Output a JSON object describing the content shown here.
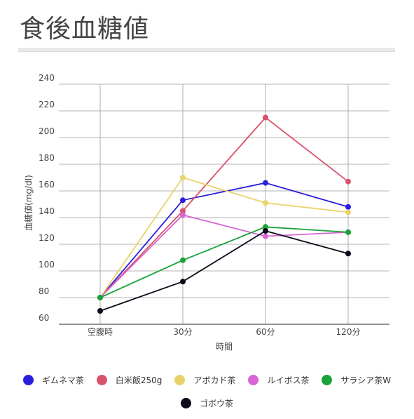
{
  "page": {
    "title": "食後血糖値"
  },
  "chart_data": {
    "type": "line",
    "title": "",
    "xlabel": "時間",
    "ylabel": "血糖値(mg/dl)",
    "categories": [
      "空腹時",
      "30分",
      "60分",
      "120分"
    ],
    "ylim": [
      60,
      240
    ],
    "yticks": [
      60,
      80,
      100,
      120,
      140,
      160,
      180,
      200,
      220,
      240
    ],
    "grid": true,
    "legend_position": "bottom",
    "series": [
      {
        "name": "ギムネマ茶",
        "color": "#2a1fdc",
        "values": [
          80,
          153,
          166,
          148
        ]
      },
      {
        "name": "白米飯250g",
        "color": "#d9536b",
        "values": [
          80,
          145,
          215,
          167
        ]
      },
      {
        "name": "アボカド茶",
        "color": "#e8d36a",
        "values": [
          80,
          170,
          151,
          144
        ]
      },
      {
        "name": "ルイボス茶",
        "color": "#d964d4",
        "values": [
          80,
          142,
          126,
          129
        ]
      },
      {
        "name": "サラシア茶W",
        "color": "#1aa33a",
        "values": [
          80,
          108,
          133,
          129
        ]
      },
      {
        "name": "ゴボウ茶",
        "color": "#0b0b1c",
        "values": [
          70,
          92,
          130,
          113
        ]
      }
    ]
  }
}
